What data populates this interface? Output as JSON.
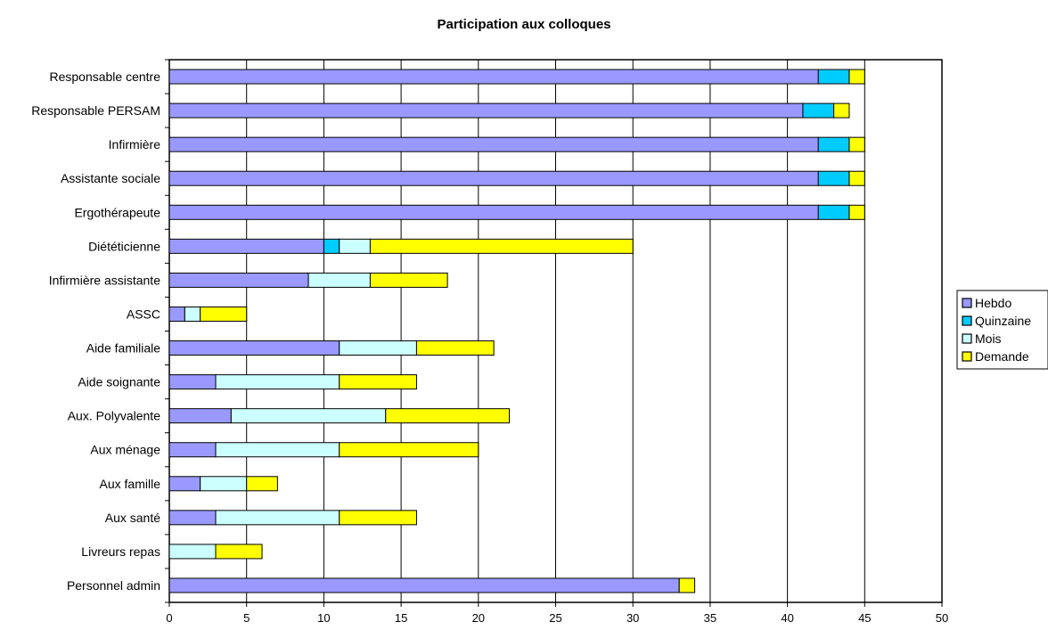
{
  "chart_data": {
    "type": "bar",
    "orientation": "horizontal",
    "stacked": true,
    "title": "Participation aux colloques",
    "xlabel": "",
    "ylabel": "",
    "xlim": [
      0,
      50
    ],
    "x_ticks": [
      "0",
      "5",
      "10",
      "15",
      "20",
      "25",
      "30",
      "35",
      "40",
      "45",
      "50"
    ],
    "grid": "vertical",
    "legend_position": "right",
    "categories": [
      "Responsable centre",
      "Responsable PERSAM",
      "Infirmière",
      "Assistante sociale",
      "Ergothérapeute",
      "Diététicienne",
      "Infirmière assistante",
      "ASSC",
      "Aide familiale",
      "Aide soignante",
      "Aux. Polyvalente",
      "Aux ménage",
      "Aux famille",
      "Aux santé",
      "Livreurs repas",
      "Personnel admin"
    ],
    "series": [
      {
        "name": "Hebdo",
        "color": "#9999ff",
        "values": [
          42,
          41,
          42,
          42,
          42,
          10,
          9,
          1,
          11,
          3,
          4,
          3,
          2,
          3,
          0,
          33
        ]
      },
      {
        "name": "Quinzaine",
        "color": "#00ccff",
        "values": [
          2,
          2,
          2,
          2,
          2,
          1,
          0,
          0,
          0,
          0,
          0,
          0,
          0,
          0,
          0,
          0
        ]
      },
      {
        "name": "Mois",
        "color": "#ccffff",
        "values": [
          0,
          0,
          0,
          0,
          0,
          2,
          4,
          1,
          5,
          8,
          10,
          8,
          3,
          8,
          3,
          0
        ]
      },
      {
        "name": "Demande",
        "color": "#ffff00",
        "values": [
          1,
          1,
          1,
          1,
          1,
          17,
          5,
          3,
          5,
          5,
          8,
          9,
          2,
          5,
          3,
          1
        ]
      }
    ]
  }
}
